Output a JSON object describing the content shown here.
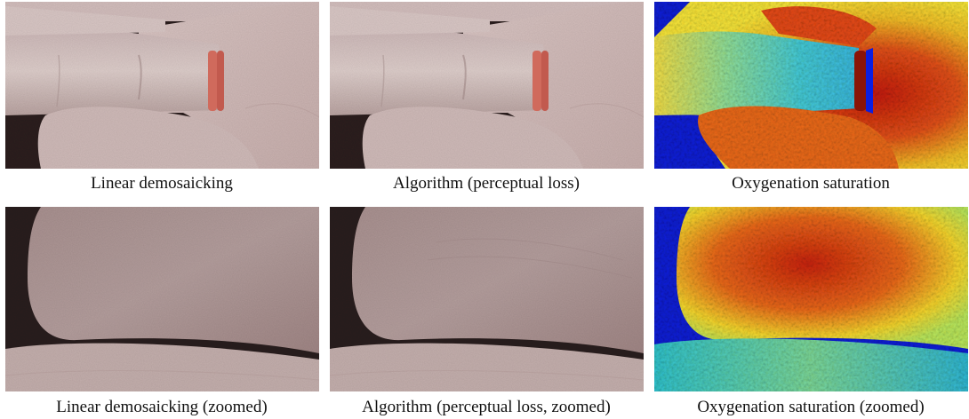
{
  "figure": {
    "panels": [
      {
        "caption": "Linear demosaicking",
        "row": "overview",
        "rendering": "rgb"
      },
      {
        "caption": "Algorithm (perceptual loss)",
        "row": "overview",
        "rendering": "rgb"
      },
      {
        "caption": "Oxygenation saturation",
        "row": "overview",
        "rendering": "jet-colormap"
      },
      {
        "caption": "Linear demosaicking (zoomed)",
        "row": "zoomed",
        "rendering": "rgb"
      },
      {
        "caption": "Algorithm (perceptual loss, zoomed)",
        "row": "zoomed",
        "rendering": "rgb"
      },
      {
        "caption": "Oxygenation saturation (zoomed)",
        "row": "zoomed",
        "rendering": "jet-colormap"
      }
    ],
    "colors": {
      "skin": "#d5c1bf",
      "skin_shadow": "#a98f8d",
      "background_dark": "#2a1f1e",
      "ring": "#d06a5c",
      "jet_blue": "#0a1ee0",
      "jet_cyan": "#35c8d8",
      "jet_yellow": "#f2e23a",
      "jet_red": "#d42a10"
    }
  }
}
